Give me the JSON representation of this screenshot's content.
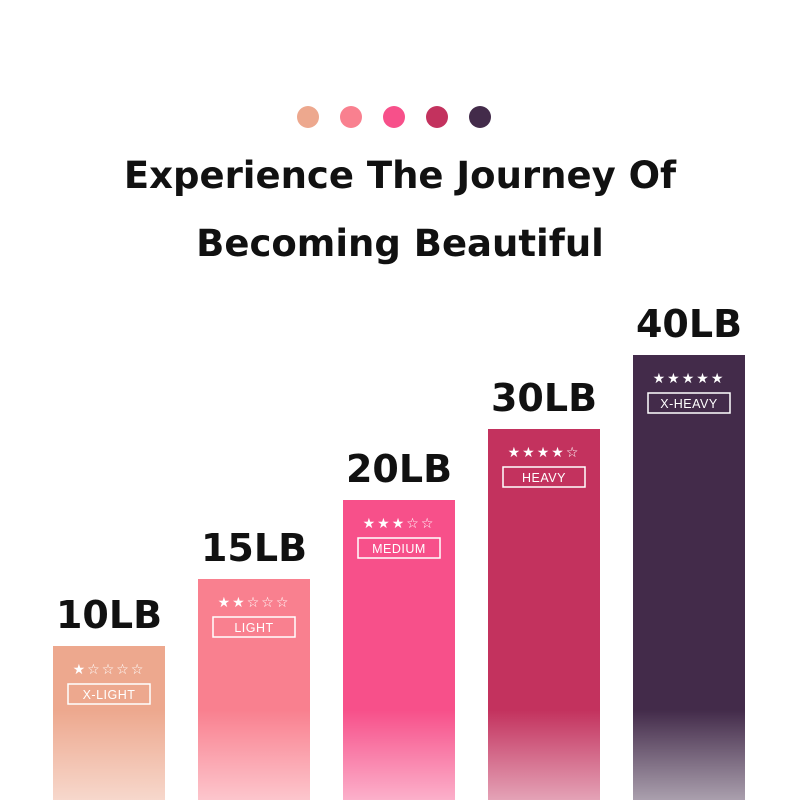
{
  "title_line1": "Experience The Journey Of",
  "title_line2": "Becoming Beautiful",
  "dot_colors": [
    "#eda88e",
    "#f9808f",
    "#f7508a",
    "#c3325e",
    "#432b4a"
  ],
  "chart_data": {
    "type": "bar",
    "categories": [
      "10LB",
      "15LB",
      "20LB",
      "30LB",
      "40LB"
    ],
    "values": [
      10,
      15,
      20,
      30,
      40
    ],
    "unit": "LB",
    "levels": [
      "X-LIGHT",
      "LIGHT",
      "MEDIUM",
      "HEAVY",
      "X-HEAVY"
    ],
    "stars": [
      1,
      2,
      3,
      4,
      5
    ],
    "max_stars": 5,
    "colors": [
      "#eda88e",
      "#f9808f",
      "#f7508a",
      "#c3325e",
      "#432b4a"
    ],
    "grid": false,
    "legend": "none"
  }
}
